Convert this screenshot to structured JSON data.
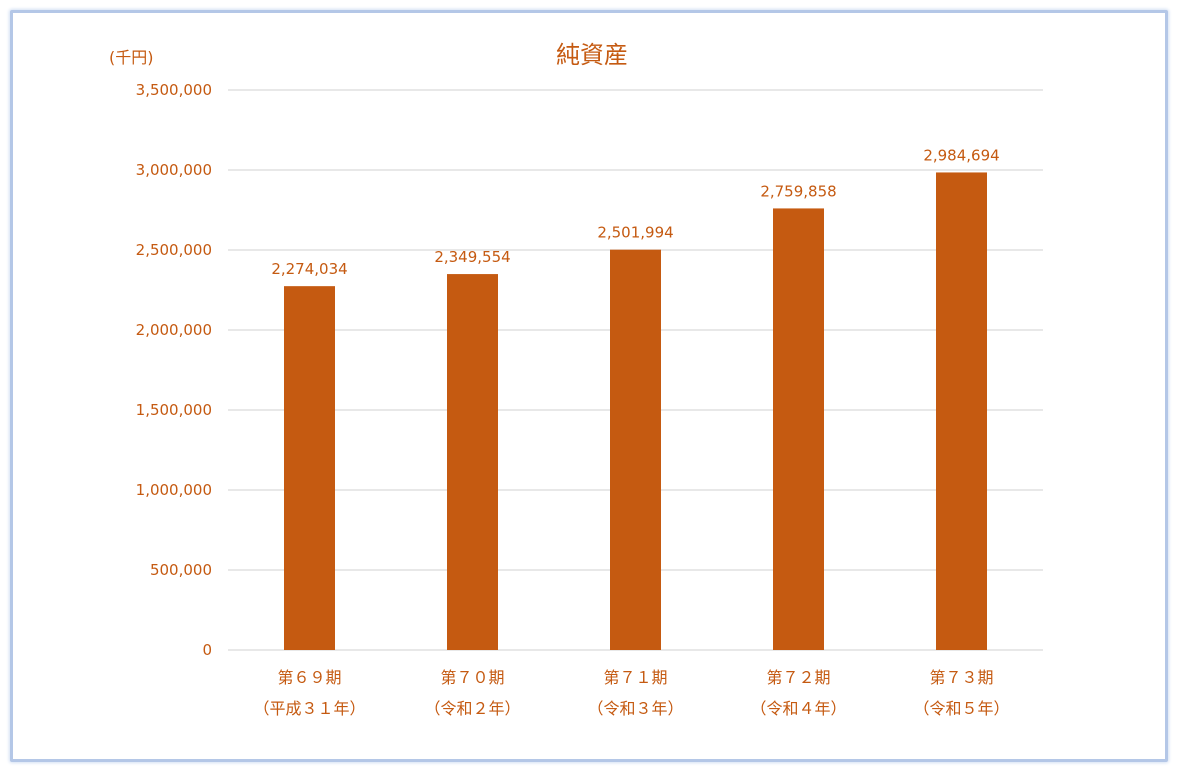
{
  "chart_data": {
    "type": "bar",
    "title": "純資産",
    "unit_label": "(千円)",
    "categories": [
      [
        "第６９期",
        "（平成３１年）"
      ],
      [
        "第７０期",
        "（令和２年）"
      ],
      [
        "第７１期",
        "（令和３年）"
      ],
      [
        "第７２期",
        "（令和４年）"
      ],
      [
        "第７３期",
        "（令和５年）"
      ]
    ],
    "values": [
      2274034,
      2349554,
      2501994,
      2759858,
      2984694
    ],
    "data_labels": [
      "2,274,034",
      "2,349,554",
      "2,501,994",
      "2,759,858",
      "2,984,694"
    ],
    "ylim": [
      0,
      3500000
    ],
    "yticks": [
      0,
      500000,
      1000000,
      1500000,
      2000000,
      2500000,
      3000000,
      3500000
    ],
    "ytick_labels": [
      "0",
      "500,000",
      "1,000,000",
      "1,500,000",
      "2,000,000",
      "2,500,000",
      "3,000,000",
      "3,500,000"
    ],
    "grid": true,
    "legend": "none",
    "colors": {
      "bar": "#c55a11",
      "text": "#c55a11",
      "grid": "#d9d9d9",
      "border": "#b4c7e7"
    }
  }
}
